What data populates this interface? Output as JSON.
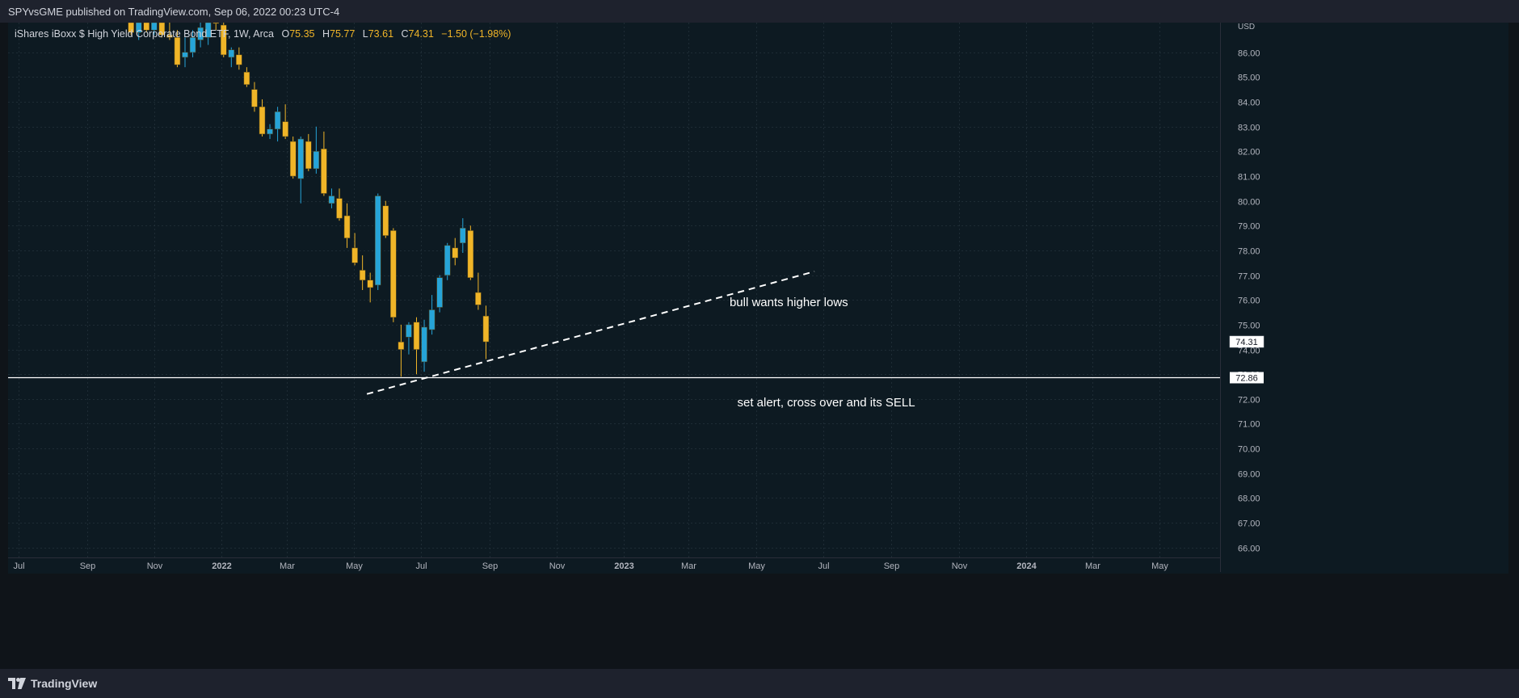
{
  "header": {
    "published": "SPYvsGME published on TradingView.com, Sep 06, 2022 00:23 UTC-4"
  },
  "legend": {
    "name": "iShares iBoxx $ High Yield Corporate Bond ETF, 1W, Arca",
    "o_label": "O",
    "o": "75.35",
    "h_label": "H",
    "h": "75.77",
    "l_label": "L",
    "l": "73.61",
    "c_label": "C",
    "c": "74.31",
    "chg": "−1.50 (−1.98%)"
  },
  "footer": {
    "brand": "TradingView",
    "logo_icon": "tradingview-logo-icon"
  },
  "colors": {
    "up": "#26a4d8",
    "down": "#f0b528",
    "bg": "#0f1a22",
    "grid": "#2a3942",
    "text": "#d1d4dc"
  },
  "chart_data": {
    "type": "candlestick",
    "symbol": "iShares iBoxx $ High Yield Corporate Bond ETF, 1W, Arca",
    "currency": "USD",
    "ylim": [
      65.6,
      87.2
    ],
    "y_ticks": [
      "86.00",
      "85.00",
      "84.00",
      "83.00",
      "82.00",
      "81.00",
      "80.00",
      "79.00",
      "78.00",
      "77.00",
      "76.00",
      "75.00",
      "74.00",
      "73.00",
      "72.00",
      "71.00",
      "70.00",
      "69.00",
      "68.00",
      "67.00",
      "66.00"
    ],
    "x_ticks": [
      {
        "date": "2021-07-01",
        "label": "Jul"
      },
      {
        "date": "2021-09-01",
        "label": "Sep"
      },
      {
        "date": "2021-11-01",
        "label": "Nov"
      },
      {
        "date": "2022-01-01",
        "label": "2022"
      },
      {
        "date": "2022-03-01",
        "label": "Mar"
      },
      {
        "date": "2022-05-01",
        "label": "May"
      },
      {
        "date": "2022-07-01",
        "label": "Jul"
      },
      {
        "date": "2022-09-01",
        "label": "Sep"
      },
      {
        "date": "2022-11-01",
        "label": "Nov"
      },
      {
        "date": "2023-01-01",
        "label": "2023"
      },
      {
        "date": "2023-03-01",
        "label": "Mar"
      },
      {
        "date": "2023-05-01",
        "label": "May"
      },
      {
        "date": "2023-07-01",
        "label": "Jul"
      },
      {
        "date": "2023-09-01",
        "label": "Sep"
      },
      {
        "date": "2023-11-01",
        "label": "Nov"
      },
      {
        "date": "2024-01-01",
        "label": "2024"
      },
      {
        "date": "2024-03-01",
        "label": "Mar"
      },
      {
        "date": "2024-05-01",
        "label": "May"
      }
    ],
    "candles": [
      {
        "date": "2021-10-11",
        "o": 87.3,
        "h": 87.5,
        "l": 86.7,
        "c": 86.8
      },
      {
        "date": "2021-10-18",
        "o": 86.8,
        "h": 87.3,
        "l": 86.5,
        "c": 87.2
      },
      {
        "date": "2021-10-25",
        "o": 87.2,
        "h": 87.5,
        "l": 86.8,
        "c": 86.9
      },
      {
        "date": "2021-11-01",
        "o": 86.9,
        "h": 87.4,
        "l": 86.7,
        "c": 87.3
      },
      {
        "date": "2021-11-08",
        "o": 87.2,
        "h": 87.4,
        "l": 86.6,
        "c": 86.7
      },
      {
        "date": "2021-11-15",
        "o": 86.7,
        "h": 87.3,
        "l": 86.5,
        "c": 86.6
      },
      {
        "date": "2021-11-22",
        "o": 86.6,
        "h": 86.9,
        "l": 85.4,
        "c": 85.5
      },
      {
        "date": "2021-11-29",
        "o": 85.8,
        "h": 86.6,
        "l": 85.4,
        "c": 86.0
      },
      {
        "date": "2021-12-06",
        "o": 86.0,
        "h": 86.9,
        "l": 85.8,
        "c": 86.6
      },
      {
        "date": "2021-12-13",
        "o": 86.5,
        "h": 87.2,
        "l": 86.2,
        "c": 87.0
      },
      {
        "date": "2021-12-20",
        "o": 86.6,
        "h": 87.6,
        "l": 86.3,
        "c": 87.5
      },
      {
        "date": "2021-12-27",
        "o": 87.4,
        "h": 87.6,
        "l": 86.9,
        "c": 87.2
      },
      {
        "date": "2022-01-03",
        "o": 87.1,
        "h": 87.3,
        "l": 85.8,
        "c": 85.9
      },
      {
        "date": "2022-01-10",
        "o": 85.8,
        "h": 86.2,
        "l": 85.4,
        "c": 86.1
      },
      {
        "date": "2022-01-17",
        "o": 85.9,
        "h": 86.2,
        "l": 85.3,
        "c": 85.5
      },
      {
        "date": "2022-01-24",
        "o": 85.2,
        "h": 85.4,
        "l": 84.6,
        "c": 84.7
      },
      {
        "date": "2022-01-31",
        "o": 84.5,
        "h": 84.8,
        "l": 83.6,
        "c": 83.8
      },
      {
        "date": "2022-02-07",
        "o": 83.8,
        "h": 84.1,
        "l": 82.6,
        "c": 82.7
      },
      {
        "date": "2022-02-14",
        "o": 82.7,
        "h": 83.1,
        "l": 82.5,
        "c": 82.9
      },
      {
        "date": "2022-02-21",
        "o": 82.9,
        "h": 83.8,
        "l": 82.4,
        "c": 83.6
      },
      {
        "date": "2022-02-28",
        "o": 83.2,
        "h": 83.9,
        "l": 82.5,
        "c": 82.6
      },
      {
        "date": "2022-03-07",
        "o": 82.4,
        "h": 82.6,
        "l": 80.9,
        "c": 81.0
      },
      {
        "date": "2022-03-14",
        "o": 80.9,
        "h": 82.6,
        "l": 79.9,
        "c": 82.5
      },
      {
        "date": "2022-03-21",
        "o": 82.4,
        "h": 82.7,
        "l": 81.2,
        "c": 81.3
      },
      {
        "date": "2022-03-28",
        "o": 81.3,
        "h": 83.0,
        "l": 81.1,
        "c": 82.0
      },
      {
        "date": "2022-04-04",
        "o": 82.1,
        "h": 82.8,
        "l": 80.2,
        "c": 80.3
      },
      {
        "date": "2022-04-11",
        "o": 79.9,
        "h": 80.5,
        "l": 79.7,
        "c": 80.2
      },
      {
        "date": "2022-04-18",
        "o": 80.1,
        "h": 80.5,
        "l": 79.2,
        "c": 79.3
      },
      {
        "date": "2022-04-25",
        "o": 79.4,
        "h": 79.9,
        "l": 78.1,
        "c": 78.5
      },
      {
        "date": "2022-05-02",
        "o": 78.1,
        "h": 78.7,
        "l": 77.4,
        "c": 77.5
      },
      {
        "date": "2022-05-09",
        "o": 77.2,
        "h": 77.8,
        "l": 76.4,
        "c": 76.8
      },
      {
        "date": "2022-05-16",
        "o": 76.8,
        "h": 77.1,
        "l": 75.9,
        "c": 76.5
      },
      {
        "date": "2022-05-23",
        "o": 76.6,
        "h": 80.3,
        "l": 76.4,
        "c": 80.2
      },
      {
        "date": "2022-05-30",
        "o": 79.8,
        "h": 80.0,
        "l": 78.5,
        "c": 78.6
      },
      {
        "date": "2022-06-06",
        "o": 78.8,
        "h": 78.9,
        "l": 75.1,
        "c": 75.3
      },
      {
        "date": "2022-06-13",
        "o": 74.3,
        "h": 75.0,
        "l": 72.9,
        "c": 74.0
      },
      {
        "date": "2022-06-20",
        "o": 74.5,
        "h": 75.1,
        "l": 73.8,
        "c": 75.0
      },
      {
        "date": "2022-06-27",
        "o": 75.1,
        "h": 75.3,
        "l": 73.0,
        "c": 74.0
      },
      {
        "date": "2022-07-04",
        "o": 73.5,
        "h": 75.2,
        "l": 73.1,
        "c": 74.9
      },
      {
        "date": "2022-07-11",
        "o": 74.8,
        "h": 76.2,
        "l": 74.6,
        "c": 75.6
      },
      {
        "date": "2022-07-18",
        "o": 75.7,
        "h": 77.0,
        "l": 75.5,
        "c": 76.9
      },
      {
        "date": "2022-07-25",
        "o": 77.0,
        "h": 78.3,
        "l": 76.8,
        "c": 78.2
      },
      {
        "date": "2022-08-01",
        "o": 78.1,
        "h": 78.5,
        "l": 77.4,
        "c": 77.7
      },
      {
        "date": "2022-08-08",
        "o": 78.3,
        "h": 79.3,
        "l": 77.9,
        "c": 78.9
      },
      {
        "date": "2022-08-15",
        "o": 78.8,
        "h": 79.0,
        "l": 76.8,
        "c": 76.9
      },
      {
        "date": "2022-08-22",
        "o": 76.3,
        "h": 77.1,
        "l": 75.6,
        "c": 75.8
      },
      {
        "date": "2022-08-29",
        "o": 75.35,
        "h": 75.77,
        "l": 73.61,
        "c": 74.31
      }
    ],
    "annotations": {
      "horizontal_line": {
        "value": 72.86,
        "label": "72.86"
      },
      "trendline": {
        "from": {
          "date": "2022-05-13",
          "value": 72.2
        },
        "to": {
          "date": "2023-06-23",
          "value": 77.15
        },
        "style": "dashed"
      },
      "texts": [
        {
          "text": "bull wants higher lows",
          "date": "2023-04-07",
          "value": 75.75
        },
        {
          "text": "set alert, cross over and its SELL",
          "date": "2023-04-14",
          "value": 71.7
        }
      ],
      "last_price": {
        "value": 74.31,
        "label": "74.31"
      }
    },
    "xlabel": "",
    "ylabel": "",
    "grid": true
  }
}
